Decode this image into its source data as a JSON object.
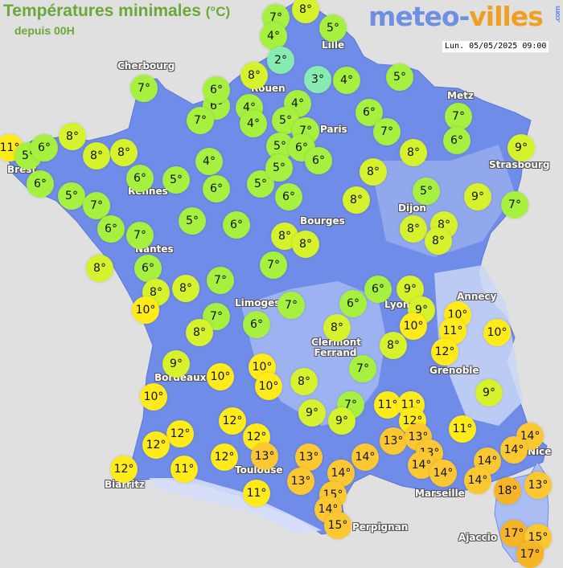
{
  "header": {
    "title": "Températures minimales",
    "unit": "(°C)",
    "subtitle": "depuis 00H",
    "logo_main": "meteo-",
    "logo_accent": "villes",
    "logo_suffix": ".com",
    "datetime": "Lun. 05/05/2025 09:00"
  },
  "colors": {
    "sea": "#e0e0e0",
    "land": "#6f8ce8",
    "highland": "#a9bdf2",
    "cold": "#88ecb0",
    "cool": "#a6f040",
    "mild": "#d6f22c",
    "warm": "#ffea1a",
    "hot": "#fcc832",
    "very_hot": "#f6b526"
  },
  "cities": [
    "Cherbourg",
    "Rouen",
    "Lille",
    "Paris",
    "Metz",
    "Strasbourg",
    "Brest",
    "Rennes",
    "Nantes",
    "Bourges",
    "Dijon",
    "Limoges",
    "Lyon",
    "Annecy",
    "Clermont Ferrand",
    "Grenoble",
    "Bordeaux",
    "Toulouse",
    "Biarritz",
    "Marseille",
    "Nice",
    "Perpignan",
    "Ajaccio"
  ],
  "temperatures": [
    7,
    8,
    4,
    5,
    2,
    8,
    3,
    4,
    5,
    7,
    6,
    6,
    4,
    4,
    7,
    4,
    5,
    7,
    6,
    7,
    7,
    6,
    11,
    5,
    6,
    8,
    8,
    8,
    5,
    6,
    6,
    8,
    9,
    4,
    6,
    6,
    5,
    6,
    5,
    5,
    8,
    6,
    8,
    5,
    9,
    7,
    5,
    7,
    6,
    7,
    5,
    6,
    8,
    8,
    8,
    8,
    8,
    8,
    6,
    7,
    8,
    8,
    7,
    10,
    7,
    8,
    6,
    7,
    6,
    6,
    9,
    9,
    10,
    8,
    10,
    11,
    10,
    8,
    12,
    9,
    10,
    10,
    10,
    8,
    7,
    9,
    10,
    9,
    7,
    9,
    11,
    11,
    12,
    12,
    12,
    12,
    12,
    12,
    11,
    13,
    13,
    13,
    13,
    14,
    13,
    14,
    14,
    12,
    11,
    14,
    14,
    14,
    14,
    13,
    14,
    13,
    18,
    15,
    11,
    14,
    15,
    17,
    15,
    17
  ]
}
